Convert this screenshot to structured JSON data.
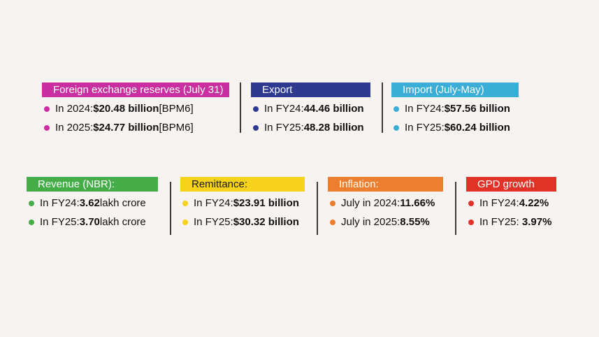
{
  "row1": {
    "reserves": {
      "title": "Foreign exchange reserves (July 31)",
      "color": "#c92fa0",
      "items": [
        {
          "prefix": "In 2024: ",
          "value": "$20.48 billion",
          "suffix": " [BPM6]"
        },
        {
          "prefix": "In 2025: ",
          "value": "$24.77 billion",
          "suffix": " [BPM6]"
        }
      ]
    },
    "export": {
      "title": "Export",
      "color": "#2e3a8f",
      "items": [
        {
          "prefix": "In FY24: ",
          "value": "44.46 billion",
          "suffix": ""
        },
        {
          "prefix": "In FY25: ",
          "value": "48.28 billion",
          "suffix": ""
        }
      ]
    },
    "import": {
      "title": "Import (July-May)",
      "color": "#3aaed6",
      "items": [
        {
          "prefix": "In FY24: ",
          "value": "$57.56 billion",
          "suffix": ""
        },
        {
          "prefix": "In FY25: ",
          "value": "$60.24 billion",
          "suffix": ""
        }
      ]
    }
  },
  "row2": {
    "revenue": {
      "title": "Revenue (NBR):",
      "color": "#45ad48",
      "items": [
        {
          "prefix": "In FY24: ",
          "value": "3.62",
          "suffix": " lakh crore"
        },
        {
          "prefix": "In FY25: ",
          "value": "3.70",
          "suffix": " lakh crore"
        }
      ]
    },
    "remittance": {
      "title": "Remittance:",
      "color": "#f7d21a",
      "items": [
        {
          "prefix": "In FY24: ",
          "value": "$23.91 billion",
          "suffix": ""
        },
        {
          "prefix": "In FY25: ",
          "value": "$30.32 billion",
          "suffix": ""
        }
      ]
    },
    "inflation": {
      "title": "Inflation:",
      "color": "#ec7f2f",
      "items": [
        {
          "prefix": "July in 2024: ",
          "value": "11.66%",
          "suffix": ""
        },
        {
          "prefix": "July in 2025: ",
          "value": "8.55%",
          "suffix": ""
        }
      ]
    },
    "gdp": {
      "title": "GPD growth",
      "color": "#e23227",
      "items": [
        {
          "prefix": "In FY24: ",
          "value": "4.22%",
          "suffix": ""
        },
        {
          "prefix": "In FY25: ",
          "value": " 3.97%",
          "suffix": ""
        }
      ]
    }
  }
}
